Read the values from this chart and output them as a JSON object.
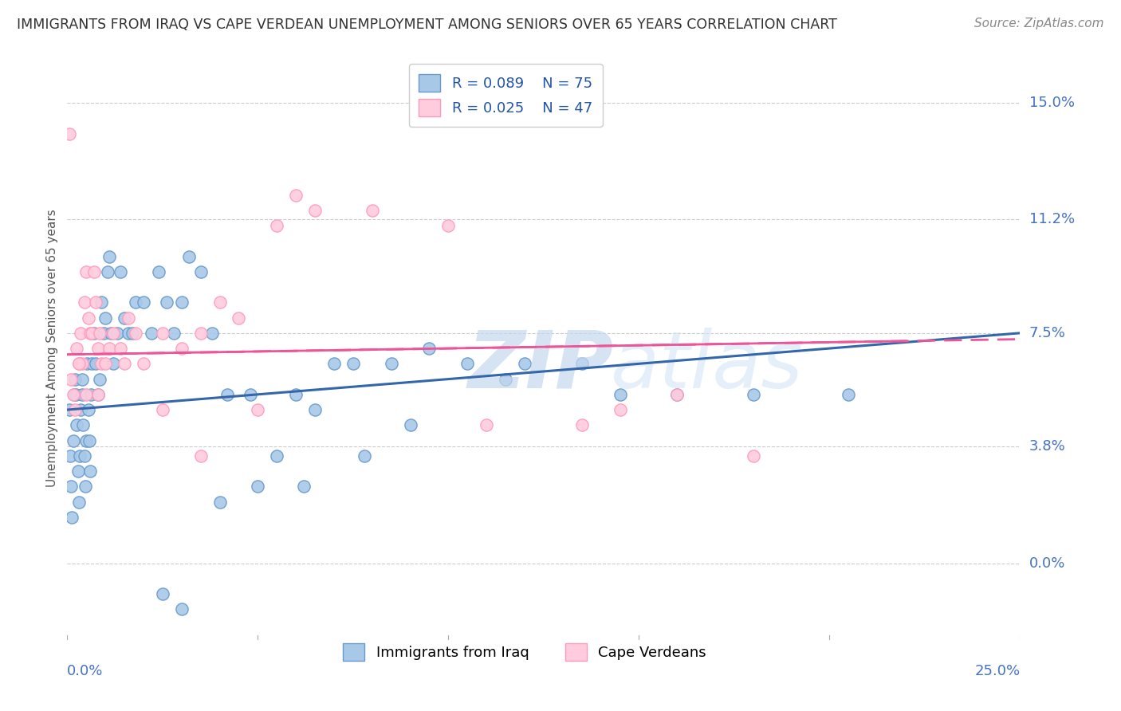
{
  "title": "IMMIGRANTS FROM IRAQ VS CAPE VERDEAN UNEMPLOYMENT AMONG SENIORS OVER 65 YEARS CORRELATION CHART",
  "source": "Source: ZipAtlas.com",
  "series1_label": "Immigrants from Iraq",
  "series1_R": 0.089,
  "series1_N": 75,
  "series1_color": "#a8c8e8",
  "series1_edge_color": "#6699cc",
  "series1_line_color": "#3366aa",
  "series2_label": "Cape Verdeans",
  "series2_R": 0.025,
  "series2_N": 47,
  "series2_color": "#ffccdd",
  "series2_edge_color": "#ff99bb",
  "series2_line_color": "#ee5599",
  "watermark_zip": "ZIP",
  "watermark_atlas": "atlas",
  "xlim": [
    0.0,
    25.0
  ],
  "ylim": [
    -2.5,
    16.5
  ],
  "ylabel_ticks": [
    0.0,
    3.8,
    7.5,
    11.2,
    15.0
  ],
  "ylabel_label": "Unemployment Among Seniors over 65 years",
  "axis_label_color": "#4472c4",
  "grid_color": "#cccccc",
  "background_color": "#ffffff",
  "series1_x": [
    0.05,
    0.08,
    0.1,
    0.12,
    0.15,
    0.18,
    0.2,
    0.22,
    0.25,
    0.28,
    0.3,
    0.33,
    0.35,
    0.38,
    0.4,
    0.42,
    0.45,
    0.48,
    0.5,
    0.52,
    0.55,
    0.58,
    0.6,
    0.62,
    0.65,
    0.7,
    0.75,
    0.8,
    0.85,
    0.9,
    0.95,
    1.0,
    1.05,
    1.1,
    1.15,
    1.2,
    1.3,
    1.4,
    1.5,
    1.6,
    1.7,
    1.8,
    2.0,
    2.2,
    2.4,
    2.6,
    2.8,
    3.0,
    3.2,
    3.5,
    3.8,
    4.2,
    4.8,
    5.5,
    6.0,
    6.5,
    7.0,
    7.5,
    8.5,
    9.5,
    10.5,
    11.5,
    12.0,
    13.5,
    14.5,
    16.0,
    18.0,
    20.5,
    2.5,
    3.0,
    4.0,
    5.0,
    6.2,
    7.8,
    9.0
  ],
  "series1_y": [
    5.0,
    3.5,
    2.5,
    1.5,
    4.0,
    5.5,
    6.0,
    5.5,
    4.5,
    3.0,
    2.0,
    3.5,
    5.0,
    5.5,
    6.0,
    4.5,
    3.5,
    2.5,
    4.0,
    6.5,
    5.0,
    4.0,
    3.0,
    5.5,
    6.5,
    7.5,
    6.5,
    5.5,
    6.0,
    8.5,
    7.5,
    8.0,
    9.5,
    10.0,
    7.5,
    6.5,
    7.5,
    9.5,
    8.0,
    7.5,
    7.5,
    8.5,
    8.5,
    7.5,
    9.5,
    8.5,
    7.5,
    8.5,
    10.0,
    9.5,
    7.5,
    5.5,
    5.5,
    3.5,
    5.5,
    5.0,
    6.5,
    6.5,
    6.5,
    7.0,
    6.5,
    6.0,
    6.5,
    6.5,
    5.5,
    5.5,
    5.5,
    5.5,
    -1.0,
    -1.5,
    2.0,
    2.5,
    2.5,
    3.5,
    4.5
  ],
  "series2_x": [
    0.05,
    0.1,
    0.15,
    0.2,
    0.25,
    0.3,
    0.35,
    0.4,
    0.45,
    0.5,
    0.55,
    0.6,
    0.65,
    0.7,
    0.75,
    0.8,
    0.85,
    0.9,
    1.0,
    1.1,
    1.2,
    1.4,
    1.6,
    1.8,
    2.0,
    2.5,
    3.0,
    3.5,
    4.0,
    4.5,
    5.5,
    6.0,
    6.5,
    8.0,
    10.0,
    11.0,
    13.5,
    14.5,
    16.0,
    18.0,
    0.3,
    0.5,
    0.8,
    1.5,
    2.5,
    3.5,
    5.0
  ],
  "series2_y": [
    14.0,
    6.0,
    5.5,
    5.0,
    7.0,
    6.5,
    7.5,
    6.5,
    8.5,
    9.5,
    8.0,
    7.5,
    7.5,
    9.5,
    8.5,
    7.0,
    7.5,
    6.5,
    6.5,
    7.0,
    7.5,
    7.0,
    8.0,
    7.5,
    6.5,
    7.5,
    7.0,
    7.5,
    8.5,
    8.0,
    11.0,
    12.0,
    11.5,
    11.5,
    11.0,
    4.5,
    4.5,
    5.0,
    5.5,
    3.5,
    6.5,
    5.5,
    5.5,
    6.5,
    5.0,
    3.5,
    5.0
  ],
  "trend1_x0": 0.0,
  "trend1_y0": 5.0,
  "trend1_x1": 25.0,
  "trend1_y1": 7.5,
  "trend2_x0": 0.0,
  "trend2_y0": 6.8,
  "trend2_x1": 25.0,
  "trend2_y1": 7.3
}
